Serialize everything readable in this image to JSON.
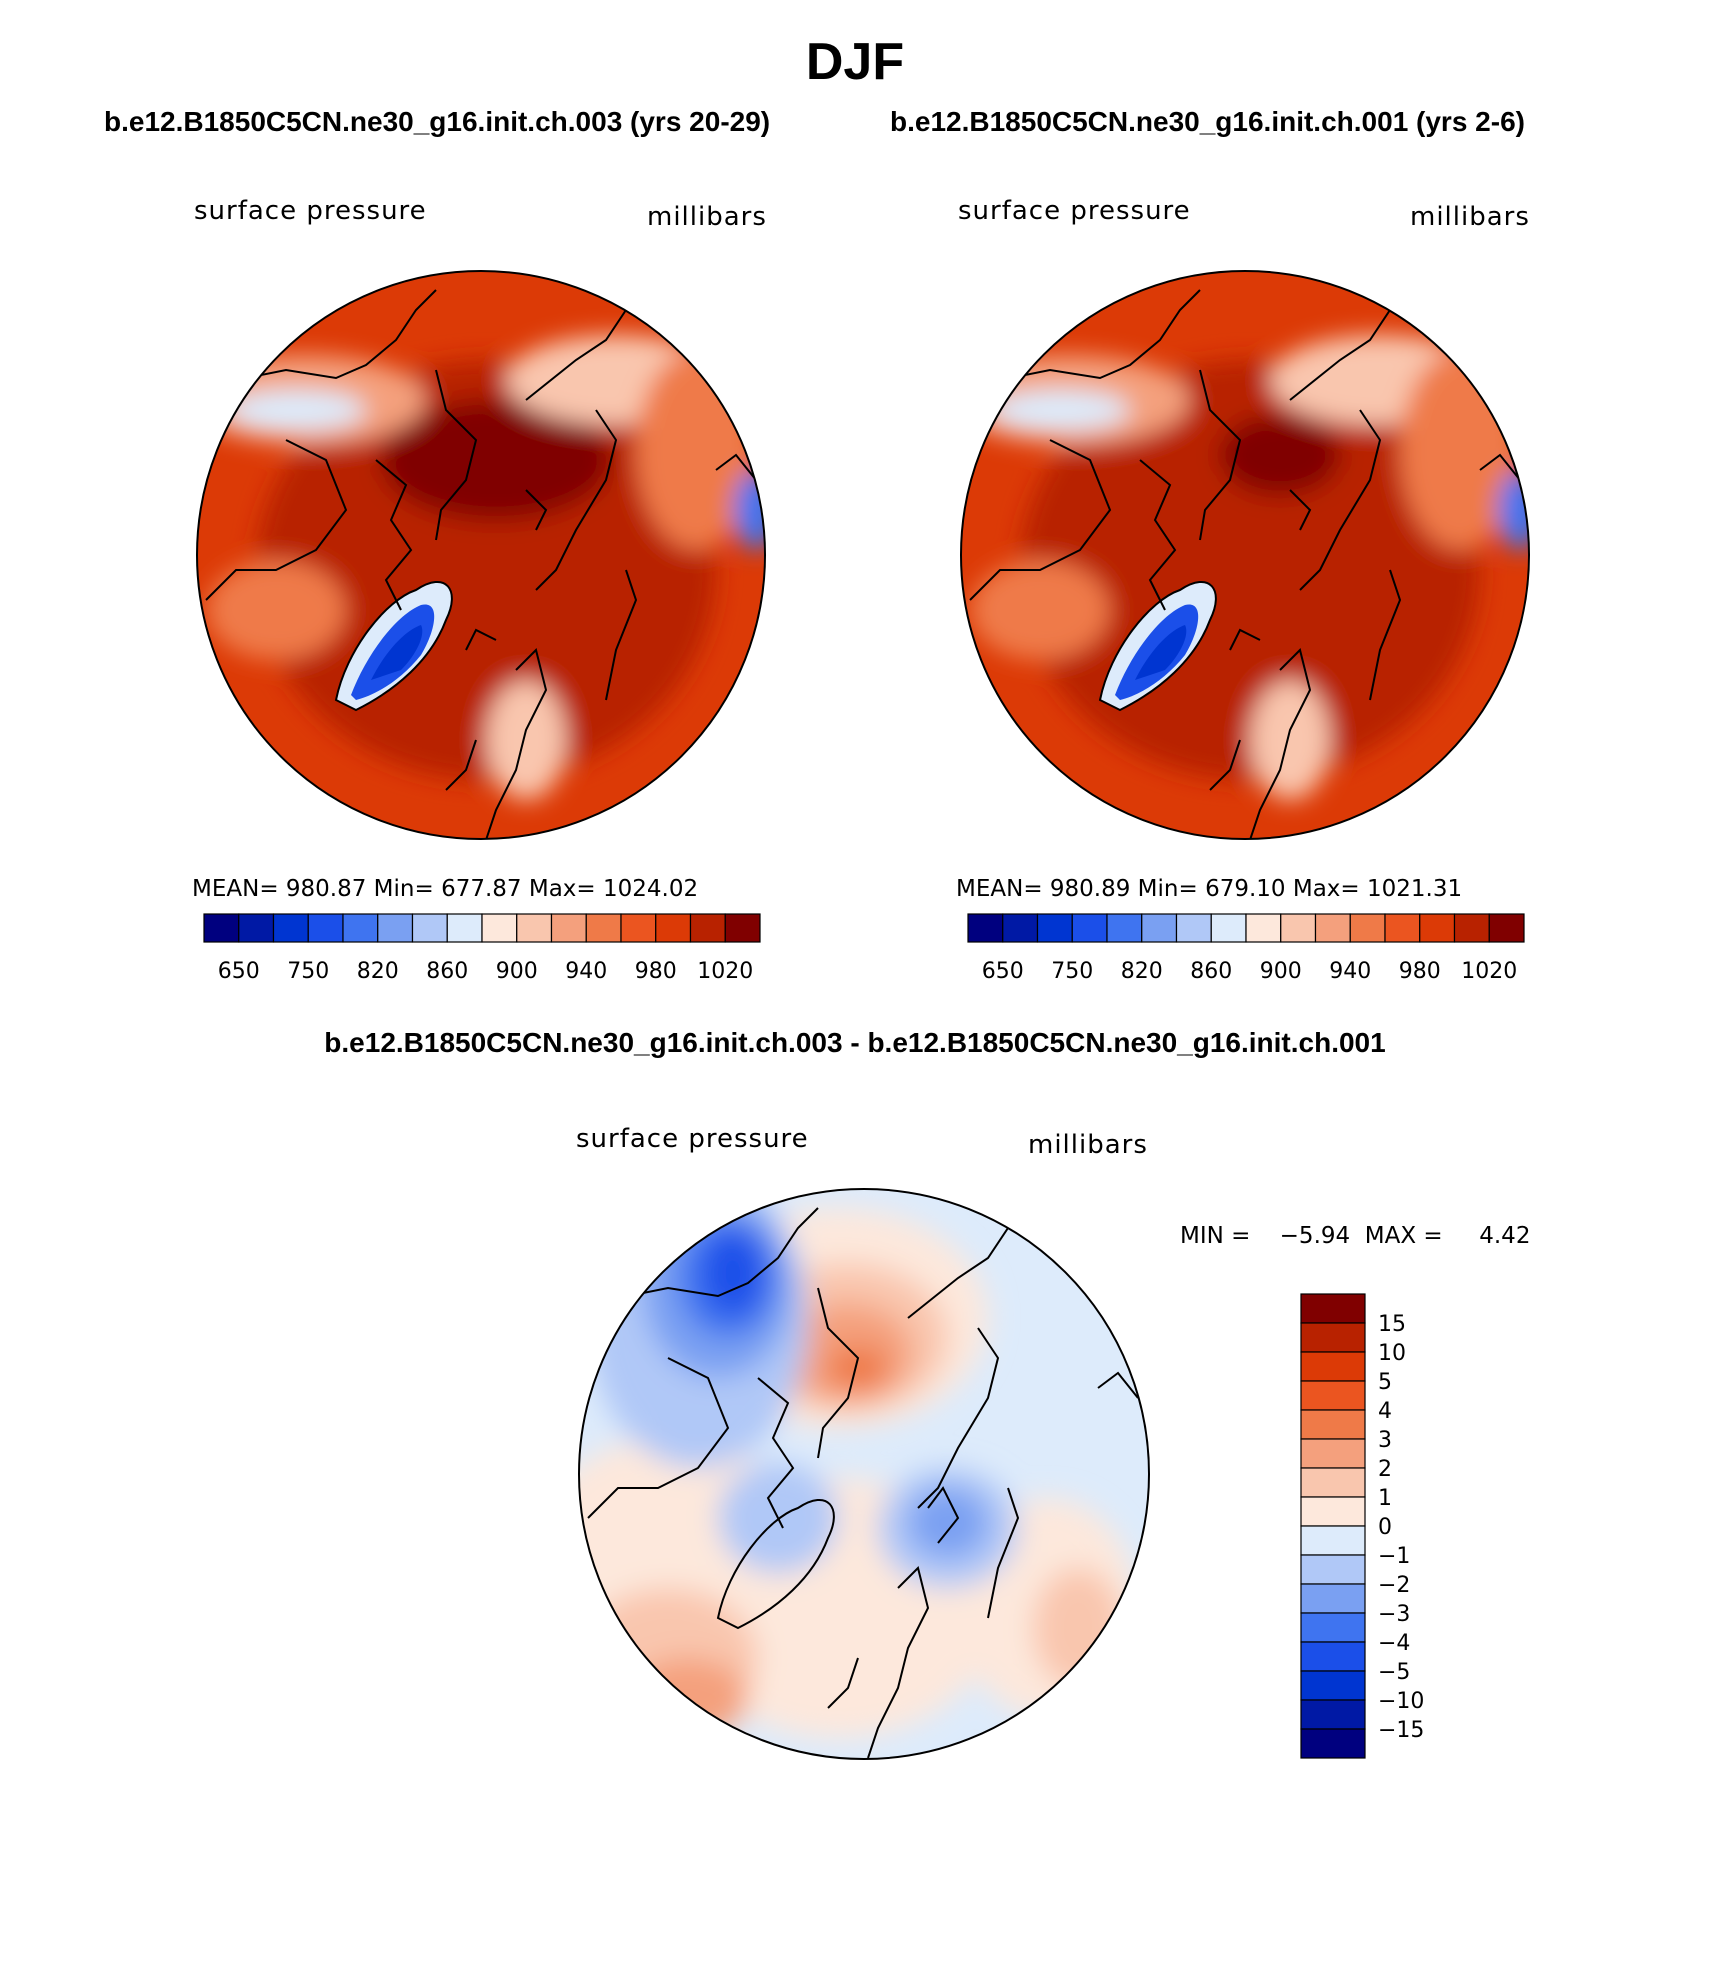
{
  "title": "DJF",
  "panels": [
    {
      "case": "b.e12.B1850C5CN.ne30_g16.init.ch.003 (yrs 20-29)",
      "variable": "surface pressure",
      "units": "millibars",
      "stats_text": "MEAN= 980.87   Min= 677.87   Max= 1024.02"
    },
    {
      "case": "b.e12.B1850C5CN.ne30_g16.init.ch.001 (yrs 2-6)",
      "variable": "surface pressure",
      "units": "millibars",
      "stats_text": "MEAN= 980.89   Min= 679.10   Max= 1021.31"
    }
  ],
  "diff": {
    "title": "b.e12.B1850C5CN.ne30_g16.init.ch.003 - b.e12.B1850C5CN.ne30_g16.init.ch.001",
    "variable": "surface pressure",
    "units": "millibars",
    "minmax_text": "MIN =    −5.94  MAX =     4.42"
  },
  "colors": {
    "abs_scale": [
      "#00007f",
      "#0019a5",
      "#0035d1",
      "#1b4fe9",
      "#3f74f0",
      "#7aa0f2",
      "#b0c8f7",
      "#ddebfb",
      "#fde8dc",
      "#f9c6ae",
      "#f4a07d",
      "#ef7a48",
      "#eb5520",
      "#dc3a06",
      "#b82200",
      "#800000"
    ],
    "diff_scale": [
      "#00007f",
      "#0019a5",
      "#0035d1",
      "#1b4fe9",
      "#3f74f0",
      "#7aa0f2",
      "#b0c8f7",
      "#ddebfb",
      "#fde8dc",
      "#f9c6ae",
      "#f4a07d",
      "#ef7a48",
      "#eb5520",
      "#dc3a06",
      "#b82200",
      "#800000"
    ]
  },
  "chart_data": [
    {
      "type": "heatmap",
      "title": "surface pressure",
      "units": "millibars",
      "projection": "north polar stereographic",
      "colorbar_labels": [
        "650",
        "750",
        "820",
        "860",
        "900",
        "940",
        "980",
        "1020"
      ],
      "mean": 980.87,
      "min": 677.87,
      "max": 1024.02
    },
    {
      "type": "heatmap",
      "title": "surface pressure",
      "units": "millibars",
      "projection": "north polar stereographic",
      "colorbar_labels": [
        "650",
        "750",
        "820",
        "860",
        "900",
        "940",
        "980",
        "1020"
      ],
      "mean": 980.89,
      "min": 679.1,
      "max": 1021.31
    },
    {
      "type": "heatmap",
      "title": "surface pressure (difference)",
      "units": "millibars",
      "projection": "north polar stereographic",
      "colorbar_labels": [
        "15",
        "10",
        "5",
        "4",
        "3",
        "2",
        "1",
        "0",
        "−1",
        "−2",
        "−3",
        "−4",
        "−5",
        "−10",
        "−15"
      ],
      "min": -5.94,
      "max": 4.42
    }
  ]
}
